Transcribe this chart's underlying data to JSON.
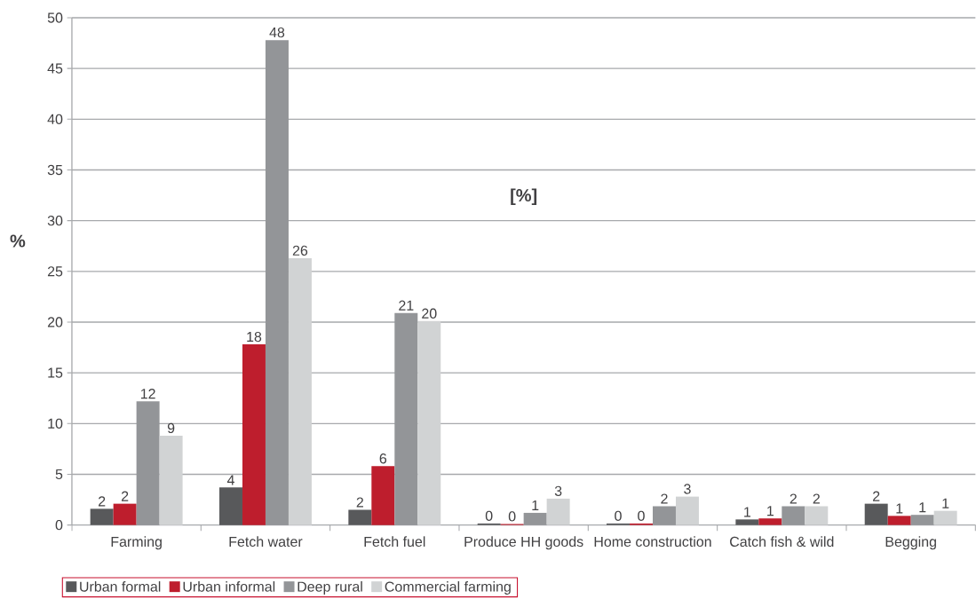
{
  "chart_data": {
    "type": "bar",
    "categories": [
      "Farming",
      "Fetch water",
      "Fetch fuel",
      "Produce HH goods",
      "Home construction",
      "Catch fish & wild",
      "Begging"
    ],
    "series": [
      {
        "name": "Urban formal",
        "color": "#58595b",
        "values": [
          1.6,
          3.7,
          1.5,
          0.15,
          0.15,
          0.55,
          2.1
        ],
        "value_labels": [
          "2",
          "4",
          "2",
          "0",
          "0",
          "1",
          "2"
        ]
      },
      {
        "name": "Urban informal",
        "color": "#be1e2d",
        "values": [
          2.1,
          17.8,
          5.8,
          0.1,
          0.15,
          0.65,
          0.9
        ],
        "value_labels": [
          "2",
          "18",
          "6",
          "0",
          "0",
          "1",
          "1"
        ]
      },
      {
        "name": "Deep rural",
        "color": "#939598",
        "values": [
          12.2,
          47.8,
          20.9,
          1.2,
          1.85,
          1.85,
          1.0
        ],
        "value_labels": [
          "12",
          "48",
          "21",
          "1",
          "2",
          "2",
          "1"
        ]
      },
      {
        "name": "Commercial farming",
        "color": "#d1d3d4",
        "values": [
          8.8,
          26.3,
          20.1,
          2.6,
          2.8,
          1.85,
          1.4
        ],
        "value_labels": [
          "9",
          "26",
          "20",
          "3",
          "3",
          "2",
          "1"
        ]
      }
    ],
    "ylabel": "%",
    "annotations": [
      "[%]"
    ],
    "ylim": [
      0,
      50
    ],
    "yticks": [
      0,
      5,
      10,
      15,
      20,
      25,
      30,
      35,
      40,
      45,
      50
    ],
    "grid": "y",
    "legend": "bottom"
  }
}
